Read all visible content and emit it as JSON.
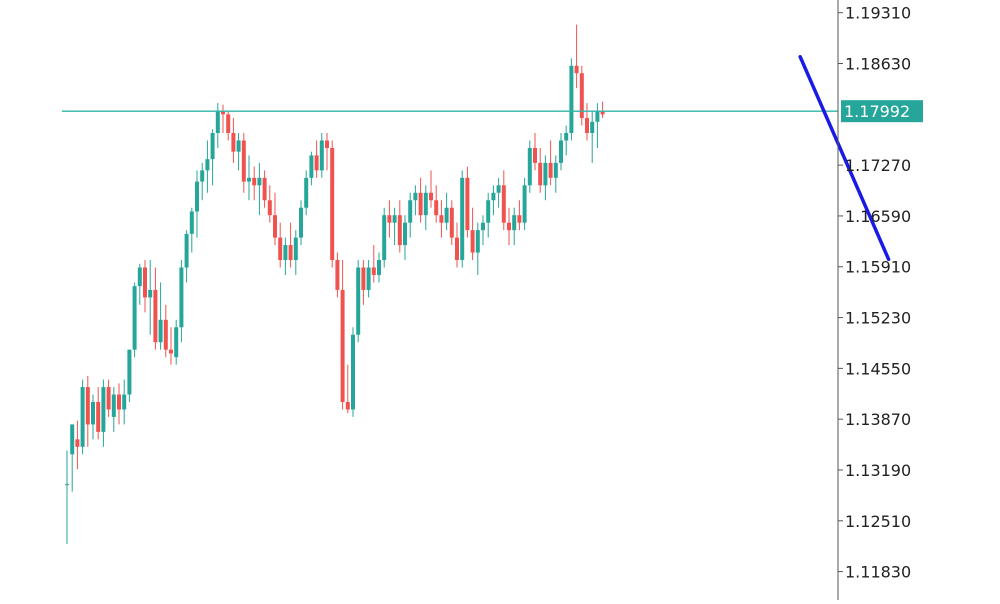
{
  "chart_data": {
    "type": "candlestick",
    "title": "",
    "xlabel": "",
    "ylabel": "",
    "ylim": [
      1.1145,
      1.1948
    ],
    "grid": false,
    "legend": "none",
    "y_ticks": [
      "1.18630",
      "1.17270",
      "1.16590",
      "1.15910",
      "1.15230",
      "1.14550",
      "1.13870",
      "1.13190",
      "1.12510",
      "1.11830"
    ],
    "top_tick_partial": "1.19310",
    "current_price": {
      "label": "1.17992",
      "value": 1.17992
    },
    "colors": {
      "bull": "#26a69a",
      "bear": "#ef5350",
      "price_line": "#2fb6a6",
      "price_label_bg": "#26a69a",
      "projection": "#1a1ae6",
      "axis": "#555555",
      "text": "#222222"
    },
    "projection_line": {
      "start": {
        "bar": 141,
        "price": 1.1872
      },
      "end": {
        "bar": 158,
        "price": 1.1601
      }
    },
    "candles": [
      [
        1.13,
        1.1345,
        1.122,
        1.13
      ],
      [
        1.134,
        1.138,
        1.129,
        1.138
      ],
      [
        1.136,
        1.1385,
        1.132,
        1.135
      ],
      [
        1.135,
        1.144,
        1.134,
        1.143
      ],
      [
        1.143,
        1.1445,
        1.135,
        1.138
      ],
      [
        1.138,
        1.142,
        1.136,
        1.141
      ],
      [
        1.141,
        1.143,
        1.136,
        1.137
      ],
      [
        1.137,
        1.144,
        1.135,
        1.143
      ],
      [
        1.143,
        1.144,
        1.139,
        1.14
      ],
      [
        1.139,
        1.143,
        1.137,
        1.142
      ],
      [
        1.142,
        1.1435,
        1.138,
        1.14
      ],
      [
        1.14,
        1.144,
        1.138,
        1.142
      ],
      [
        1.142,
        1.148,
        1.141,
        1.148
      ],
      [
        1.148,
        1.157,
        1.147,
        1.1565
      ],
      [
        1.1565,
        1.1595,
        1.154,
        1.159
      ],
      [
        1.159,
        1.16,
        1.153,
        1.155
      ],
      [
        1.155,
        1.16,
        1.15,
        1.156
      ],
      [
        1.156,
        1.159,
        1.148,
        1.149
      ],
      [
        1.149,
        1.157,
        1.148,
        1.152
      ],
      [
        1.152,
        1.154,
        1.147,
        1.148
      ],
      [
        1.148,
        1.151,
        1.146,
        1.1475
      ],
      [
        1.147,
        1.152,
        1.146,
        1.151
      ],
      [
        1.151,
        1.16,
        1.149,
        1.159
      ],
      [
        1.159,
        1.164,
        1.157,
        1.1635
      ],
      [
        1.1635,
        1.167,
        1.161,
        1.1665
      ],
      [
        1.1665,
        1.172,
        1.163,
        1.1705
      ],
      [
        1.1705,
        1.173,
        1.168,
        1.172
      ],
      [
        1.172,
        1.176,
        1.169,
        1.1735
      ],
      [
        1.1735,
        1.1775,
        1.17,
        1.177
      ],
      [
        1.177,
        1.181,
        1.175,
        1.18
      ],
      [
        1.18,
        1.1808,
        1.177,
        1.1795
      ],
      [
        1.1795,
        1.18,
        1.176,
        1.177
      ],
      [
        1.177,
        1.179,
        1.173,
        1.1745
      ],
      [
        1.1745,
        1.177,
        1.172,
        1.176
      ],
      [
        1.176,
        1.177,
        1.169,
        1.1705
      ],
      [
        1.1705,
        1.174,
        1.168,
        1.171
      ],
      [
        1.171,
        1.1725,
        1.168,
        1.17
      ],
      [
        1.17,
        1.173,
        1.166,
        1.171
      ],
      [
        1.171,
        1.172,
        1.167,
        1.168
      ],
      [
        1.168,
        1.17,
        1.165,
        1.166
      ],
      [
        1.166,
        1.169,
        1.162,
        1.163
      ],
      [
        1.163,
        1.165,
        1.159,
        1.16
      ],
      [
        1.16,
        1.163,
        1.158,
        1.162
      ],
      [
        1.162,
        1.165,
        1.159,
        1.16
      ],
      [
        1.16,
        1.164,
        1.158,
        1.163
      ],
      [
        1.163,
        1.168,
        1.162,
        1.167
      ],
      [
        1.167,
        1.172,
        1.166,
        1.171
      ],
      [
        1.171,
        1.1745,
        1.17,
        1.174
      ],
      [
        1.174,
        1.176,
        1.171,
        1.172
      ],
      [
        1.172,
        1.177,
        1.171,
        1.176
      ],
      [
        1.176,
        1.177,
        1.172,
        1.175
      ],
      [
        1.175,
        1.176,
        1.159,
        1.16
      ],
      [
        1.16,
        1.161,
        1.155,
        1.156
      ],
      [
        1.156,
        1.16,
        1.14,
        1.141
      ],
      [
        1.141,
        1.146,
        1.1395,
        1.14
      ],
      [
        1.14,
        1.151,
        1.139,
        1.15
      ],
      [
        1.15,
        1.16,
        1.149,
        1.159
      ],
      [
        1.159,
        1.16,
        1.154,
        1.156
      ],
      [
        1.156,
        1.16,
        1.155,
        1.159
      ],
      [
        1.159,
        1.162,
        1.157,
        1.158
      ],
      [
        1.158,
        1.161,
        1.157,
        1.16
      ],
      [
        1.16,
        1.167,
        1.159,
        1.166
      ],
      [
        1.166,
        1.168,
        1.163,
        1.165
      ],
      [
        1.165,
        1.167,
        1.162,
        1.166
      ],
      [
        1.166,
        1.168,
        1.161,
        1.162
      ],
      [
        1.162,
        1.166,
        1.16,
        1.165
      ],
      [
        1.165,
        1.169,
        1.163,
        1.168
      ],
      [
        1.168,
        1.17,
        1.166,
        1.169
      ],
      [
        1.169,
        1.171,
        1.165,
        1.166
      ],
      [
        1.166,
        1.17,
        1.164,
        1.169
      ],
      [
        1.169,
        1.172,
        1.167,
        1.168
      ],
      [
        1.168,
        1.17,
        1.165,
        1.166
      ],
      [
        1.166,
        1.168,
        1.163,
        1.165
      ],
      [
        1.165,
        1.169,
        1.164,
        1.167
      ],
      [
        1.167,
        1.168,
        1.162,
        1.163
      ],
      [
        1.163,
        1.165,
        1.159,
        1.16
      ],
      [
        1.16,
        1.172,
        1.159,
        1.171
      ],
      [
        1.171,
        1.1725,
        1.163,
        1.164
      ],
      [
        1.164,
        1.167,
        1.16,
        1.161
      ],
      [
        1.161,
        1.165,
        1.158,
        1.164
      ],
      [
        1.164,
        1.166,
        1.162,
        1.165
      ],
      [
        1.165,
        1.169,
        1.163,
        1.168
      ],
      [
        1.168,
        1.17,
        1.166,
        1.169
      ],
      [
        1.169,
        1.171,
        1.167,
        1.17
      ],
      [
        1.17,
        1.172,
        1.164,
        1.165
      ],
      [
        1.165,
        1.167,
        1.162,
        1.164
      ],
      [
        1.164,
        1.167,
        1.162,
        1.166
      ],
      [
        1.166,
        1.168,
        1.164,
        1.165
      ],
      [
        1.165,
        1.171,
        1.164,
        1.17
      ],
      [
        1.17,
        1.176,
        1.169,
        1.175
      ],
      [
        1.175,
        1.177,
        1.172,
        1.173
      ],
      [
        1.173,
        1.175,
        1.169,
        1.17
      ],
      [
        1.17,
        1.174,
        1.168,
        1.173
      ],
      [
        1.173,
        1.176,
        1.17,
        1.171
      ],
      [
        1.171,
        1.174,
        1.169,
        1.173
      ],
      [
        1.173,
        1.177,
        1.172,
        1.176
      ],
      [
        1.176,
        1.178,
        1.174,
        1.177
      ],
      [
        1.177,
        1.187,
        1.176,
        1.186
      ],
      [
        1.186,
        1.1915,
        1.183,
        1.185
      ],
      [
        1.185,
        1.186,
        1.178,
        1.179
      ],
      [
        1.179,
        1.181,
        1.176,
        1.177
      ],
      [
        1.177,
        1.18,
        1.173,
        1.1785
      ],
      [
        1.1785,
        1.181,
        1.175,
        1.18
      ],
      [
        1.18,
        1.1812,
        1.179,
        1.1795
      ]
    ]
  }
}
